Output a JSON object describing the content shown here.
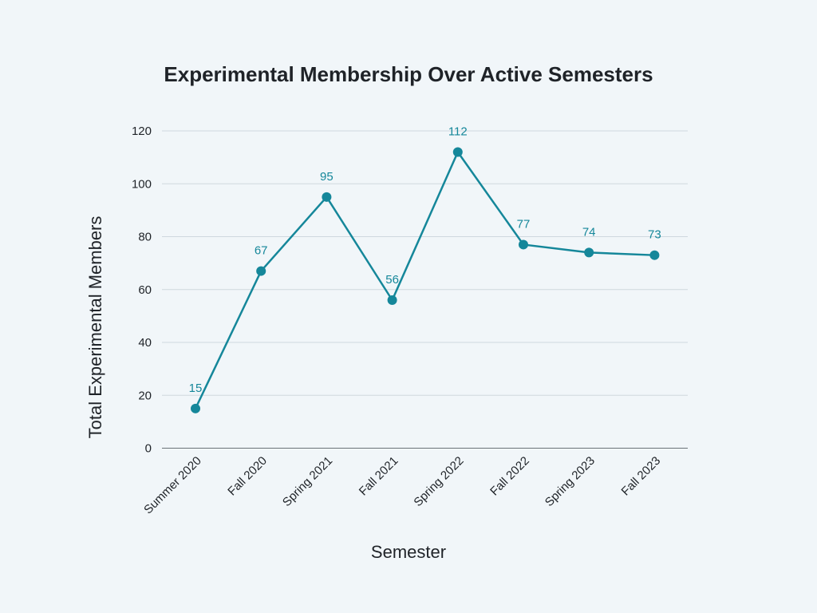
{
  "colors": {
    "background": "#f1f6f9",
    "series": "#15879a",
    "grid": "#cfd8de",
    "text": "#1f2328"
  },
  "chart_data": {
    "type": "line",
    "title": "Experimental Membership Over Active Semesters",
    "xlabel": "Semester",
    "ylabel": "Total Experimental Members",
    "categories": [
      "Summer 2020",
      "Fall 2020",
      "Spring 2021",
      "Fall 2021",
      "Spring 2022",
      "Fall 2022",
      "Spring 2023",
      "Fall 2023"
    ],
    "series": [
      {
        "values": [
          15,
          67,
          95,
          56,
          112,
          77,
          74,
          73
        ]
      }
    ],
    "ylim": [
      0,
      120
    ],
    "yticks": [
      0,
      20,
      40,
      60,
      80,
      100,
      120
    ],
    "grid": true,
    "data_labels": true,
    "markers": true
  }
}
